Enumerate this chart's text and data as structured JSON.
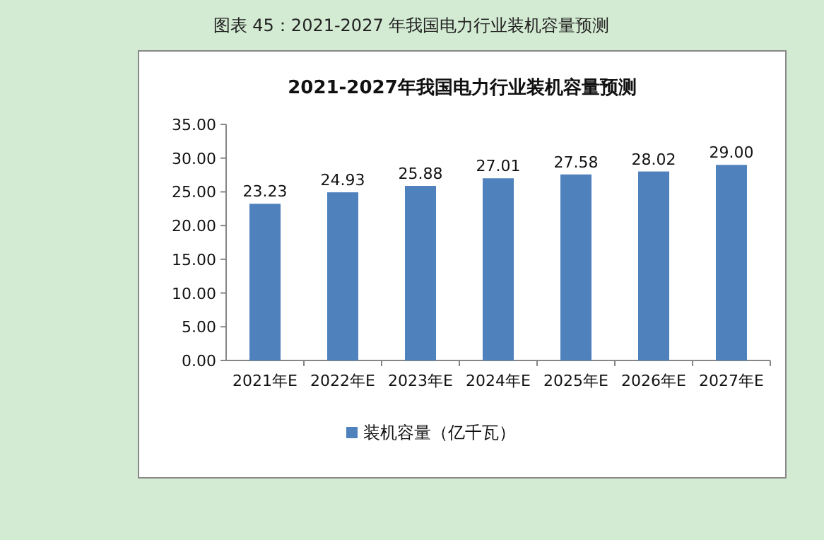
{
  "chart_data": {
    "type": "bar",
    "title": "2021-2027年我国电力行业装机容量预测",
    "annotations": [
      "图表 45：2021-2027 年我国电力行业装机容量预测"
    ],
    "categories": [
      "2021年E",
      "2022年E",
      "2023年E",
      "2024年E",
      "2025年E",
      "2026年E",
      "2027年E"
    ],
    "series": [
      {
        "name": "装机容量（亿千瓦）",
        "color": "#4f81bd",
        "values": [
          23.23,
          24.93,
          25.88,
          27.01,
          27.58,
          28.02,
          29.0
        ],
        "value_labels": [
          "23.23",
          "24.93",
          "25.88",
          "27.01",
          "27.58",
          "28.02",
          "29.00"
        ]
      }
    ],
    "ylim": [
      0,
      35
    ],
    "yticks": [
      {
        "value": 0,
        "label": "0.00"
      },
      {
        "value": 5,
        "label": "5.00"
      },
      {
        "value": 10,
        "label": "10.00"
      },
      {
        "value": 15,
        "label": "15.00"
      },
      {
        "value": 20,
        "label": "20.00"
      },
      {
        "value": 25,
        "label": "25.00"
      },
      {
        "value": 30,
        "label": "30.00"
      },
      {
        "value": 35,
        "label": "35.00"
      }
    ],
    "grid": false,
    "legend": "bottom"
  }
}
